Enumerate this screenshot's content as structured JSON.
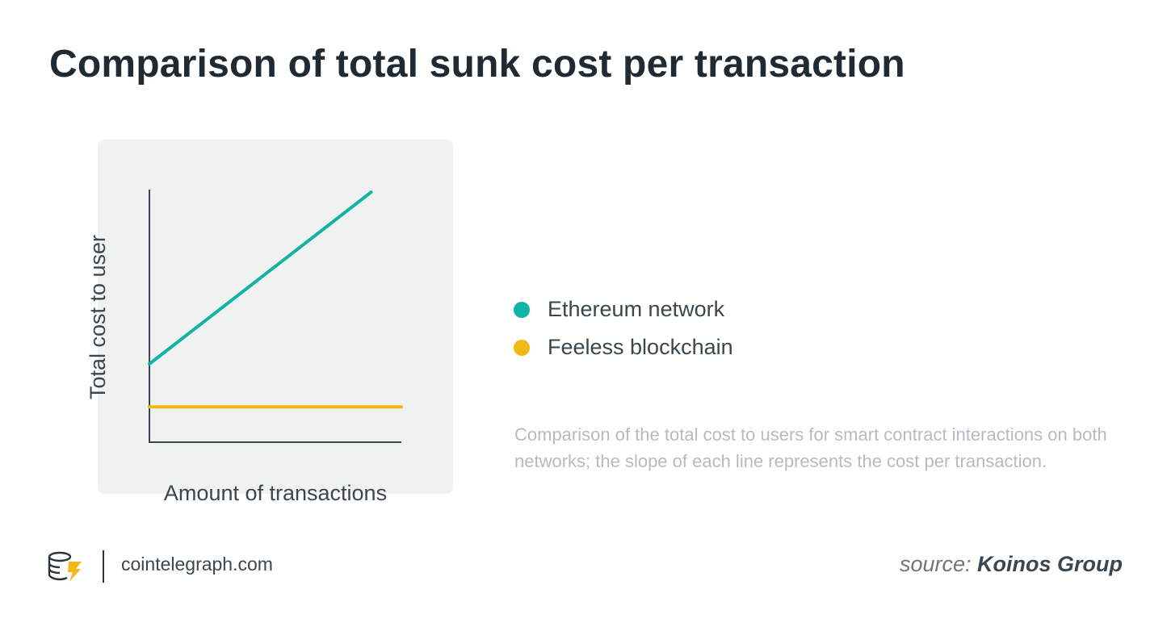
{
  "title": "Comparison of total sunk cost per transaction",
  "chart_data": {
    "type": "line",
    "xlabel": "Amount of transactions",
    "ylabel": "Total cost to user",
    "xlim": [
      0,
      100
    ],
    "ylim": [
      0,
      100
    ],
    "grid": false,
    "legend_position": "right",
    "series": [
      {
        "name": "Ethereum network",
        "color": "#12b3a4",
        "x": [
          0,
          88
        ],
        "y": [
          31,
          99
        ]
      },
      {
        "name": "Feeless blockchain",
        "color": "#f2b817",
        "x": [
          0,
          100
        ],
        "y": [
          14,
          14
        ]
      }
    ]
  },
  "caption": "Comparison of the total cost to users for smart contract interactions on both networks; the slope of each line represents the cost per transaction.",
  "footer": {
    "site": "cointelegraph.com",
    "logo_icon": "cointelegraph-logo-icon",
    "source_prefix": "source:",
    "source_name": "Koinos Group"
  },
  "colors": {
    "title": "#1f2a33",
    "axis": "#3a4650",
    "panel": "#f0f1f1",
    "caption": "#b4bcc2"
  }
}
